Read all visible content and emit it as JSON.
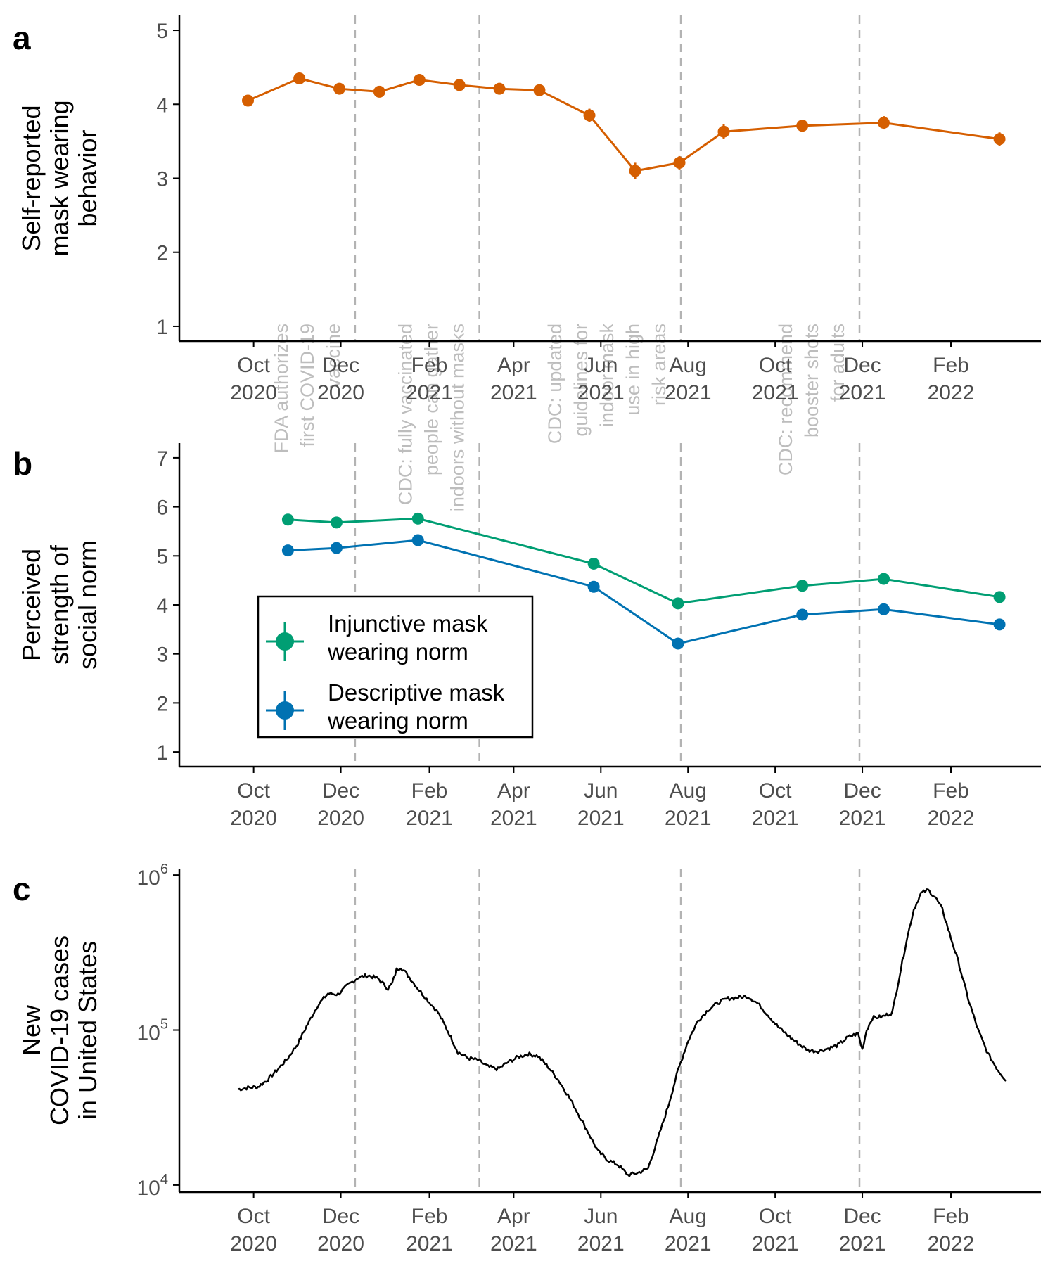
{
  "figure": {
    "x_ticks": [
      {
        "date": "2020-10-01",
        "l1": "Oct",
        "l2": "2020"
      },
      {
        "date": "2020-12-01",
        "l1": "Dec",
        "l2": "2020"
      },
      {
        "date": "2021-02-01",
        "l1": "Feb",
        "l2": "2021"
      },
      {
        "date": "2021-04-01",
        "l1": "Apr",
        "l2": "2021"
      },
      {
        "date": "2021-06-01",
        "l1": "Jun",
        "l2": "2021"
      },
      {
        "date": "2021-08-01",
        "l1": "Aug",
        "l2": "2021"
      },
      {
        "date": "2021-10-01",
        "l1": "Oct",
        "l2": "2021"
      },
      {
        "date": "2021-12-01",
        "l1": "Dec",
        "l2": "2021"
      },
      {
        "date": "2022-02-01",
        "l1": "Feb",
        "l2": "2022"
      }
    ],
    "x_range": [
      "2020-08-10",
      "2022-04-05"
    ],
    "events": [
      {
        "date": "2020-12-11",
        "label": [
          "FDA authorizes",
          "first COVID-19",
          "vaccine"
        ]
      },
      {
        "date": "2021-03-08",
        "label": [
          "CDC: fully vaccinated",
          "people can gather",
          "indoors without masks"
        ]
      },
      {
        "date": "2021-07-27",
        "label": [
          "CDC: updated",
          "guidelines for",
          "indoor mask",
          "use in high",
          "risk areas"
        ]
      },
      {
        "date": "2021-11-29",
        "label": [
          "CDC: recommend",
          "booster shots",
          "for adults"
        ]
      }
    ]
  },
  "chart_data": [
    {
      "type": "line",
      "panel": "a",
      "ylabel": [
        "Self-reported",
        "mask wearing",
        "behavior"
      ],
      "ylim": [
        0.8,
        5.2
      ],
      "yticks": [
        1,
        2,
        3,
        4,
        5
      ],
      "grid": false,
      "series": [
        {
          "color": "#D55E00",
          "points": [
            {
              "x": "2020-09-27",
              "y": 4.05,
              "err": 0.06
            },
            {
              "x": "2020-11-02",
              "y": 4.35,
              "err": 0.05
            },
            {
              "x": "2020-11-30",
              "y": 4.21,
              "err": 0.05
            },
            {
              "x": "2020-12-28",
              "y": 4.17,
              "err": 0.05
            },
            {
              "x": "2021-01-25",
              "y": 4.33,
              "err": 0.06
            },
            {
              "x": "2021-02-22",
              "y": 4.26,
              "err": 0.06
            },
            {
              "x": "2021-03-22",
              "y": 4.21,
              "err": 0.06
            },
            {
              "x": "2021-04-19",
              "y": 4.19,
              "err": 0.06
            },
            {
              "x": "2021-05-24",
              "y": 3.85,
              "err": 0.09
            },
            {
              "x": "2021-06-25",
              "y": 3.1,
              "err": 0.11
            },
            {
              "x": "2021-07-26",
              "y": 3.21,
              "err": 0.09
            },
            {
              "x": "2021-08-26",
              "y": 3.63,
              "err": 0.1
            },
            {
              "x": "2021-10-20",
              "y": 3.71,
              "err": 0.08
            },
            {
              "x": "2021-12-16",
              "y": 3.75,
              "err": 0.09
            },
            {
              "x": "2022-03-07",
              "y": 3.53,
              "err": 0.09
            }
          ]
        }
      ]
    },
    {
      "type": "line",
      "panel": "b",
      "ylabel": [
        "Perceived",
        "strength of",
        "social norm"
      ],
      "ylim": [
        0.7,
        7.3
      ],
      "yticks": [
        1,
        2,
        3,
        4,
        5,
        6,
        7
      ],
      "grid": false,
      "legend_position": "lower-left",
      "series": [
        {
          "name": "Injunctive mask wearing norm",
          "legend_lines": [
            "Injunctive mask",
            "wearing norm"
          ],
          "color": "#009E73",
          "points": [
            {
              "x": "2020-10-25",
              "y": 5.74,
              "err": 0.06
            },
            {
              "x": "2020-11-28",
              "y": 5.68,
              "err": 0.06
            },
            {
              "x": "2021-01-24",
              "y": 5.76,
              "err": 0.06
            },
            {
              "x": "2021-05-27",
              "y": 4.84,
              "err": 0.07
            },
            {
              "x": "2021-07-25",
              "y": 4.03,
              "err": 0.07
            },
            {
              "x": "2021-10-20",
              "y": 4.39,
              "err": 0.08
            },
            {
              "x": "2021-12-16",
              "y": 4.53,
              "err": 0.09
            },
            {
              "x": "2022-03-07",
              "y": 4.16,
              "err": 0.09
            }
          ]
        },
        {
          "name": "Descriptive mask wearing norm",
          "legend_lines": [
            "Descriptive mask",
            "wearing norm"
          ],
          "color": "#0072B2",
          "points": [
            {
              "x": "2020-10-25",
              "y": 5.11,
              "err": 0.05
            },
            {
              "x": "2020-11-28",
              "y": 5.16,
              "err": 0.05
            },
            {
              "x": "2021-01-24",
              "y": 5.32,
              "err": 0.05
            },
            {
              "x": "2021-05-27",
              "y": 4.37,
              "err": 0.05
            },
            {
              "x": "2021-07-25",
              "y": 3.21,
              "err": 0.05
            },
            {
              "x": "2021-10-20",
              "y": 3.8,
              "err": 0.06
            },
            {
              "x": "2021-12-16",
              "y": 3.91,
              "err": 0.06
            },
            {
              "x": "2022-03-07",
              "y": 3.6,
              "err": 0.06
            }
          ]
        }
      ]
    },
    {
      "type": "line",
      "panel": "c",
      "ylabel": [
        "New",
        "COVID-19 cases",
        "in United States"
      ],
      "yscale": "log",
      "ylim": [
        9000,
        1100000
      ],
      "yticks": [
        {
          "value": 10000,
          "base": "10",
          "exp": "4"
        },
        {
          "value": 100000,
          "base": "10",
          "exp": "5"
        },
        {
          "value": 1000000,
          "base": "10",
          "exp": "6"
        }
      ],
      "grid": false,
      "series": [
        {
          "color": "#000000",
          "points": [
            [
              "2020-09-20",
              41500
            ],
            [
              "2020-09-27",
              42500
            ],
            [
              "2020-10-04",
              43000
            ],
            [
              "2020-10-11",
              48000
            ],
            [
              "2020-10-18",
              56000
            ],
            [
              "2020-10-25",
              66000
            ],
            [
              "2020-11-01",
              82000
            ],
            [
              "2020-11-08",
              110000
            ],
            [
              "2020-11-15",
              145000
            ],
            [
              "2020-11-22",
              172000
            ],
            [
              "2020-11-29",
              170000
            ],
            [
              "2020-12-06",
              195000
            ],
            [
              "2020-12-13",
              218000
            ],
            [
              "2020-12-20",
              225000
            ],
            [
              "2020-12-27",
              215000
            ],
            [
              "2021-01-03",
              185000
            ],
            [
              "2021-01-06",
              200000
            ],
            [
              "2021-01-09",
              245000
            ],
            [
              "2021-01-12",
              255000
            ],
            [
              "2021-01-17",
              225000
            ],
            [
              "2021-01-24",
              185000
            ],
            [
              "2021-01-31",
              155000
            ],
            [
              "2021-02-07",
              130000
            ],
            [
              "2021-02-14",
              98000
            ],
            [
              "2021-02-21",
              72000
            ],
            [
              "2021-02-28",
              66000
            ],
            [
              "2021-03-07",
              64000
            ],
            [
              "2021-03-14",
              58000
            ],
            [
              "2021-03-21",
              56000
            ],
            [
              "2021-03-28",
              62000
            ],
            [
              "2021-04-04",
              67000
            ],
            [
              "2021-04-11",
              70000
            ],
            [
              "2021-04-18",
              68000
            ],
            [
              "2021-04-25",
              58000
            ],
            [
              "2021-05-02",
              48000
            ],
            [
              "2021-05-09",
              38000
            ],
            [
              "2021-05-16",
              29000
            ],
            [
              "2021-05-23",
              22000
            ],
            [
              "2021-05-30",
              16500
            ],
            [
              "2021-06-06",
              14500
            ],
            [
              "2021-06-13",
              13500
            ],
            [
              "2021-06-20",
              11600
            ],
            [
              "2021-06-27",
              12000
            ],
            [
              "2021-07-04",
              12800
            ],
            [
              "2021-07-11",
              20000
            ],
            [
              "2021-07-18",
              32000
            ],
            [
              "2021-07-25",
              55000
            ],
            [
              "2021-08-01",
              85000
            ],
            [
              "2021-08-08",
              115000
            ],
            [
              "2021-08-15",
              135000
            ],
            [
              "2021-08-22",
              150000
            ],
            [
              "2021-08-29",
              160000
            ],
            [
              "2021-09-05",
              162000
            ],
            [
              "2021-09-12",
              165000
            ],
            [
              "2021-09-19",
              148000
            ],
            [
              "2021-09-26",
              125000
            ],
            [
              "2021-10-03",
              105000
            ],
            [
              "2021-10-10",
              92000
            ],
            [
              "2021-10-17",
              82000
            ],
            [
              "2021-10-24",
              74000
            ],
            [
              "2021-10-31",
              73000
            ],
            [
              "2021-11-07",
              76000
            ],
            [
              "2021-11-14",
              80000
            ],
            [
              "2021-11-21",
              90000
            ],
            [
              "2021-11-28",
              95000
            ],
            [
              "2021-12-01",
              75000
            ],
            [
              "2021-12-04",
              100000
            ],
            [
              "2021-12-08",
              120000
            ],
            [
              "2021-12-15",
              122000
            ],
            [
              "2021-12-22",
              130000
            ],
            [
              "2021-12-26",
              200000
            ],
            [
              "2022-01-01",
              380000
            ],
            [
              "2022-01-06",
              600000
            ],
            [
              "2022-01-11",
              760000
            ],
            [
              "2022-01-16",
              800000
            ],
            [
              "2022-01-21",
              720000
            ],
            [
              "2022-01-26",
              600000
            ],
            [
              "2022-01-31",
              420000
            ],
            [
              "2022-02-06",
              280000
            ],
            [
              "2022-02-13",
              160000
            ],
            [
              "2022-02-20",
              100000
            ],
            [
              "2022-02-27",
              70000
            ],
            [
              "2022-03-06",
              55000
            ],
            [
              "2022-03-12",
              47000
            ]
          ]
        }
      ]
    }
  ]
}
